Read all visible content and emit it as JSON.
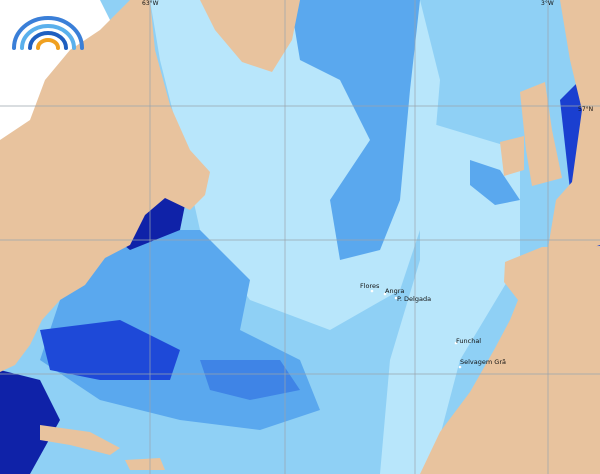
{
  "map": {
    "longitude_labels": [
      "63°W",
      "3°W"
    ],
    "latitude_labels": [
      "57°N"
    ],
    "places": [
      "Flores",
      "Angra",
      "P. Delgada",
      "Funchal",
      "Selvagem Grã"
    ]
  }
}
